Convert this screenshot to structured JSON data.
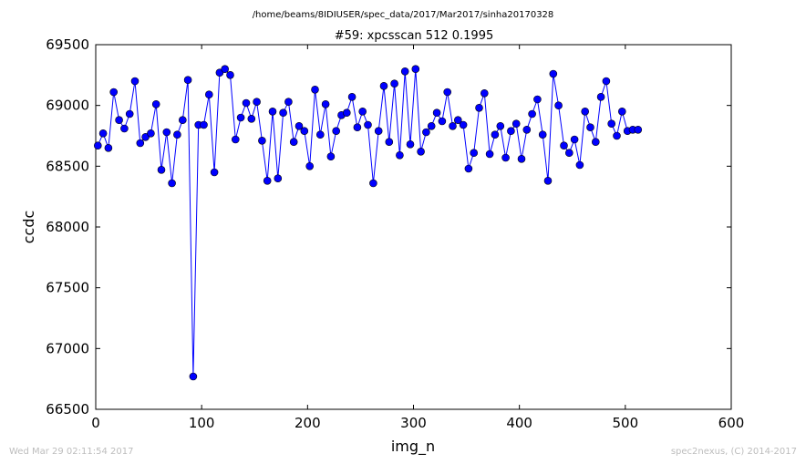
{
  "figure": {
    "supertitle": "/home/beams/8IDIUSER/spec_data/2017/Mar2017/sinha20170328",
    "footer_left": "Wed Mar 29 02:11:54 2017",
    "footer_right": "spec2nexus, (C) 2014-2017"
  },
  "chart_data": {
    "type": "line",
    "title": "#59: xpcsscan 512 0.1995",
    "xlabel": "img_n",
    "ylabel": "ccdc",
    "xlim": [
      0,
      600
    ],
    "ylim": [
      66500,
      69500
    ],
    "xticks": [
      0,
      100,
      200,
      300,
      400,
      500,
      600
    ],
    "yticks": [
      66500,
      67000,
      67500,
      68000,
      68500,
      69000,
      69500
    ],
    "grid": false,
    "marker": "circle",
    "color": "#0000ff",
    "x": [
      2,
      7,
      12,
      17,
      22,
      27,
      32,
      37,
      42,
      47,
      52,
      57,
      62,
      67,
      72,
      77,
      82,
      87,
      92,
      97,
      102,
      107,
      112,
      117,
      122,
      127,
      132,
      137,
      142,
      147,
      152,
      157,
      162,
      167,
      172,
      177,
      182,
      187,
      192,
      197,
      202,
      207,
      212,
      217,
      222,
      227,
      232,
      237,
      242,
      247,
      252,
      257,
      262,
      267,
      272,
      277,
      282,
      287,
      292,
      297,
      302,
      307,
      312,
      317,
      322,
      327,
      332,
      337,
      342,
      347,
      352,
      357,
      362,
      367,
      372,
      377,
      382,
      387,
      392,
      397,
      402,
      407,
      412,
      417,
      422,
      427,
      432,
      437,
      442,
      447,
      452,
      457,
      462,
      467,
      472,
      477,
      482,
      487,
      492,
      497,
      502,
      507,
      512
    ],
    "y": [
      68670,
      68770,
      68650,
      69110,
      68880,
      68810,
      68930,
      69200,
      68690,
      68740,
      68770,
      69010,
      68470,
      68780,
      68360,
      68760,
      68880,
      69210,
      66770,
      68840,
      68840,
      69090,
      68450,
      69270,
      69300,
      69250,
      68720,
      68900,
      69020,
      68890,
      69030,
      68710,
      68380,
      68950,
      68400,
      68940,
      69030,
      68700,
      68830,
      68790,
      68500,
      69130,
      68760,
      69010,
      68580,
      68790,
      68920,
      68940,
      69070,
      68820,
      68950,
      68840,
      68360,
      68790,
      69160,
      68700,
      69180,
      68590,
      69280,
      68680,
      69300,
      68620,
      68780,
      68830,
      68940,
      68870,
      69110,
      68830,
      68880,
      68840,
      68480,
      68610,
      68980,
      69100,
      68600,
      68760,
      68830,
      68570,
      68790,
      68850,
      68560,
      68800,
      68930,
      69050,
      68760,
      68380,
      69260,
      69000,
      68670,
      68610,
      68720,
      68510,
      68950,
      68820,
      68700,
      69070,
      69200,
      68850,
      68750,
      68950,
      68790,
      68800,
      68800
    ]
  }
}
